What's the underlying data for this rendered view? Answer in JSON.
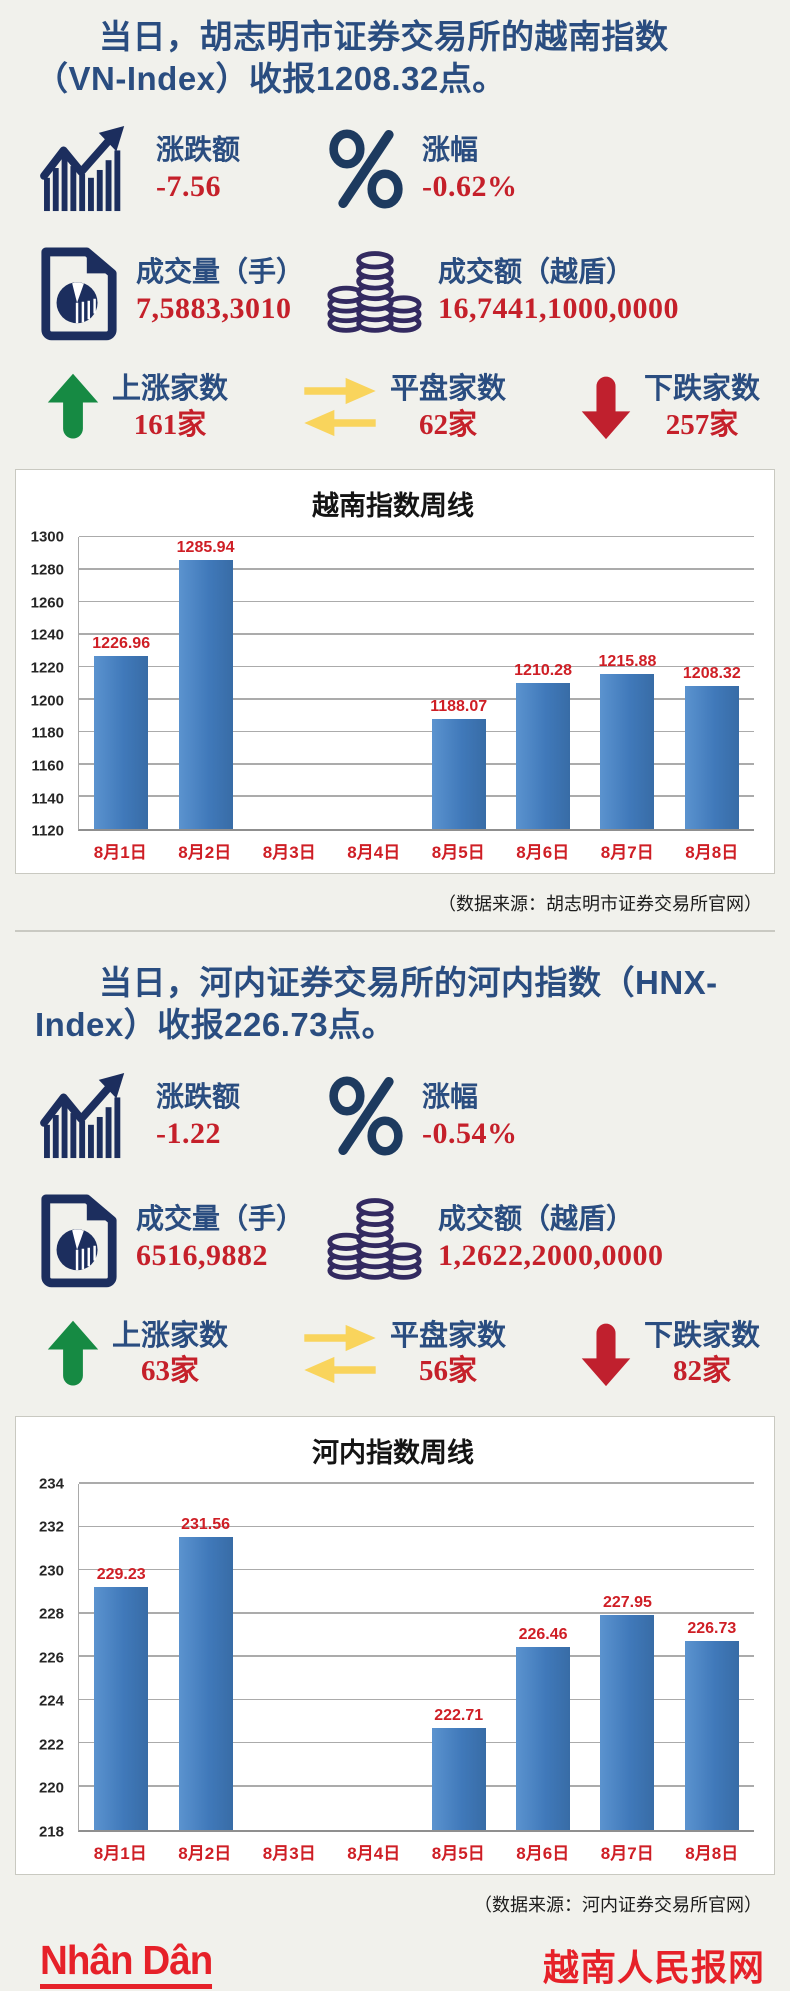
{
  "page": {
    "background": "#f1f1ec"
  },
  "sections": [
    {
      "title": "当日，胡志明市证券交易所的越南指数（VN-Index）收报1208.32点。",
      "stats": [
        {
          "icon": "trend-chart-icon",
          "label": "涨跌额",
          "value": "-7.56"
        },
        {
          "icon": "percent-icon",
          "label": "涨幅",
          "value": "-0.62%"
        },
        {
          "icon": "document-pie-icon",
          "label": "成交量（手）",
          "value": "7,5883,3010"
        },
        {
          "icon": "coin-stacks-icon",
          "label": "成交额（越盾）",
          "value": "16,7441,1000,0000"
        }
      ],
      "counts": [
        {
          "icon": "up-arrow-icon",
          "label": "上涨家数",
          "value": "161家",
          "color": "#168a43"
        },
        {
          "icon": "swap-arrows-icon",
          "label": "平盘家数",
          "value": "62家",
          "color": "#f9d45c"
        },
        {
          "icon": "down-arrow-icon",
          "label": "下跌家数",
          "value": "257家",
          "color": "#c0202e"
        }
      ],
      "source": "（数据来源：胡志明市证券交易所官网）"
    },
    {
      "title": "当日，河内证券交易所的河内指数（HNX-Index）收报226.73点。",
      "stats": [
        {
          "icon": "trend-chart-icon",
          "label": "涨跌额",
          "value": "-1.22"
        },
        {
          "icon": "percent-icon",
          "label": "涨幅",
          "value": "-0.54%"
        },
        {
          "icon": "document-pie-icon",
          "label": "成交量（手）",
          "value": "6516,9882"
        },
        {
          "icon": "coin-stacks-icon",
          "label": "成交额（越盾）",
          "value": "1,2622,2000,0000"
        }
      ],
      "counts": [
        {
          "icon": "up-arrow-icon",
          "label": "上涨家数",
          "value": "63家",
          "color": "#168a43"
        },
        {
          "icon": "swap-arrows-icon",
          "label": "平盘家数",
          "value": "56家",
          "color": "#f9d45c"
        },
        {
          "icon": "down-arrow-icon",
          "label": "下跌家数",
          "value": "82家",
          "color": "#c0202e"
        }
      ],
      "source": "（数据来源：河内证券交易所官网）"
    }
  ],
  "chart_data": [
    {
      "type": "bar",
      "title": "越南指数周线",
      "categories": [
        "8月1日",
        "8月2日",
        "8月3日",
        "8月4日",
        "8月5日",
        "8月6日",
        "8月7日",
        "8月8日"
      ],
      "values": [
        1226.96,
        1285.94,
        null,
        null,
        1188.07,
        1210.28,
        1215.88,
        1208.32
      ],
      "ylim": [
        1120,
        1300
      ],
      "ytick_step": 20,
      "grid": true,
      "bar_color": "#4079ba",
      "value_label_color": "#cf1e25"
    },
    {
      "type": "bar",
      "title": "河内指数周线",
      "categories": [
        "8月1日",
        "8月2日",
        "8月3日",
        "8月4日",
        "8月5日",
        "8月6日",
        "8月7日",
        "8月8日"
      ],
      "values": [
        229.23,
        231.56,
        null,
        null,
        222.71,
        226.46,
        227.95,
        226.73
      ],
      "ylim": [
        218,
        234
      ],
      "ytick_step": 2,
      "grid": true,
      "bar_color": "#4079ba",
      "value_label_color": "#cf1e25"
    }
  ],
  "footer": {
    "brand": "Nhân Dân",
    "site_name": "越南人民报网",
    "accent_color": "#e62129"
  }
}
